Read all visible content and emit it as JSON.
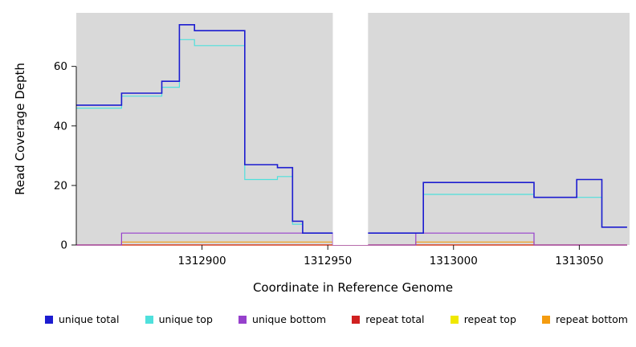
{
  "chart_data": {
    "type": "line",
    "subtype": "step",
    "title": "",
    "xlabel": "Coordinate in Reference Genome",
    "ylabel": "Read Coverage Depth",
    "xlim": [
      1312850,
      1313070
    ],
    "ylim": [
      0,
      78
    ],
    "xticks": [
      1312900,
      1312950,
      1313000,
      1313050
    ],
    "yticks": [
      0,
      20,
      40,
      60
    ],
    "grid": false,
    "panel_bg": "#d9d9d9",
    "figure_bg": "#ffffff",
    "gap_region": {
      "x_start": 1312952,
      "x_end": 1312966,
      "color": "#ffffff"
    },
    "legend_position": "bottom",
    "series": [
      {
        "name": "unique total",
        "color": "#1c1cd0",
        "line_width": 1.6,
        "points": [
          [
            1312850,
            47
          ],
          [
            1312868,
            51
          ],
          [
            1312884,
            55
          ],
          [
            1312891,
            74
          ],
          [
            1312897,
            72
          ],
          [
            1312917,
            27
          ],
          [
            1312930,
            26
          ],
          [
            1312936,
            8
          ],
          [
            1312940,
            4
          ],
          [
            1312988,
            21
          ],
          [
            1313032,
            16
          ],
          [
            1313049,
            22
          ],
          [
            1313059,
            6
          ],
          [
            1313069,
            6
          ]
        ]
      },
      {
        "name": "unique top",
        "color": "#4fe0dc",
        "line_width": 1.2,
        "points": [
          [
            1312850,
            46
          ],
          [
            1312868,
            50
          ],
          [
            1312884,
            53
          ],
          [
            1312891,
            69
          ],
          [
            1312897,
            67
          ],
          [
            1312917,
            22
          ],
          [
            1312930,
            23
          ],
          [
            1312936,
            7
          ],
          [
            1312940,
            4
          ],
          [
            1312988,
            17
          ],
          [
            1313032,
            16
          ],
          [
            1313049,
            16
          ],
          [
            1313059,
            6
          ],
          [
            1313069,
            6
          ]
        ]
      },
      {
        "name": "unique bottom",
        "color": "#9640cc",
        "line_width": 1.2,
        "points": [
          [
            1312850,
            0
          ],
          [
            1312868,
            4
          ],
          [
            1312952,
            0
          ],
          [
            1312985,
            4
          ],
          [
            1313032,
            0
          ],
          [
            1313069,
            0
          ]
        ]
      },
      {
        "name": "repeat total",
        "color": "#d02020",
        "line_width": 1.2,
        "points": [
          [
            1312850,
            0
          ],
          [
            1313069,
            0
          ]
        ]
      },
      {
        "name": "repeat top",
        "color": "#f0e800",
        "line_width": 1.2,
        "points": [
          [
            1312850,
            0
          ],
          [
            1313069,
            0
          ]
        ]
      },
      {
        "name": "repeat bottom",
        "color": "#f49c10",
        "line_width": 1.2,
        "points": [
          [
            1312850,
            0
          ],
          [
            1312868,
            1
          ],
          [
            1312952,
            0
          ],
          [
            1312985,
            1
          ],
          [
            1313032,
            0
          ],
          [
            1313069,
            0
          ]
        ]
      }
    ]
  }
}
